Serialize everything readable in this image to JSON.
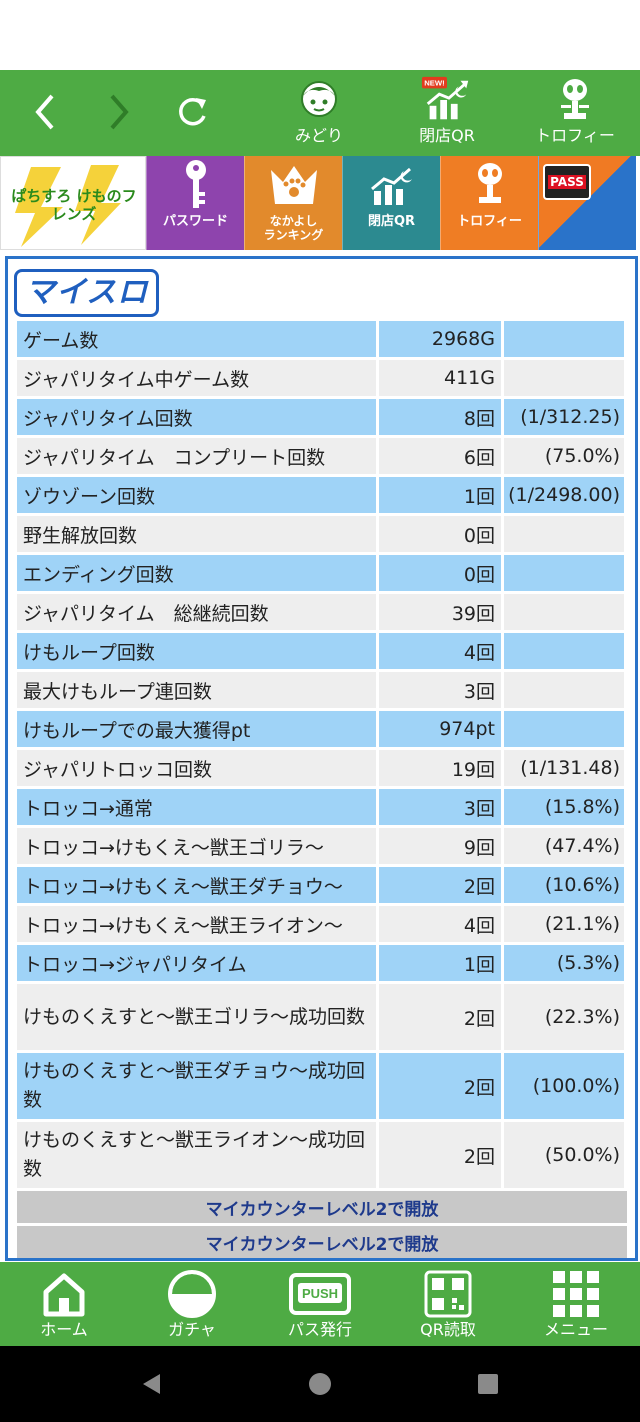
{
  "topnav": {
    "back_icon": "chevron-left-icon",
    "forward_icon": "chevron-right-icon",
    "reload_icon": "reload-icon",
    "items": [
      {
        "label": "みどり",
        "icon": "character-icon"
      },
      {
        "label": "閉店QR",
        "icon": "chart-moon-icon",
        "badge": "NEW!"
      },
      {
        "label": "トロフィー",
        "icon": "trophy-icon"
      }
    ]
  },
  "banner": {
    "logo_text": "ぱちすろ けものフレンズ",
    "tiles": [
      {
        "label": "パスワード",
        "icon": "key-icon"
      },
      {
        "label": "なかよし\nランキング",
        "icon": "paw-crown-icon"
      },
      {
        "label": "閉店QR",
        "icon": "chart-moon-icon"
      },
      {
        "label": "トロフィー",
        "icon": "trophy-icon"
      }
    ],
    "pass_badge": "PASS"
  },
  "myslo": {
    "logo": "マイスロ",
    "rows": [
      {
        "label": "ゲーム数",
        "value": "2968G",
        "extra": ""
      },
      {
        "label": "ジャパリタイム中ゲーム数",
        "value": "411G",
        "extra": ""
      },
      {
        "label": "ジャパリタイム回数",
        "value": "8回",
        "extra": "(1/312.25)"
      },
      {
        "label": "ジャパリタイム　コンプリート回数",
        "value": "6回",
        "extra": "(75.0%)"
      },
      {
        "label": "ゾウゾーン回数",
        "value": "1回",
        "extra": "(1/2498.00)"
      },
      {
        "label": "野生解放回数",
        "value": "0回",
        "extra": ""
      },
      {
        "label": "エンディング回数",
        "value": "0回",
        "extra": ""
      },
      {
        "label": "ジャパリタイム　総継続回数",
        "value": "39回",
        "extra": ""
      },
      {
        "label": "けもループ回数",
        "value": "4回",
        "extra": ""
      },
      {
        "label": "最大けもループ連回数",
        "value": "3回",
        "extra": ""
      },
      {
        "label": "けもループでの最大獲得pt",
        "value": "974pt",
        "extra": ""
      },
      {
        "label": "ジャパリトロッコ回数",
        "value": "19回",
        "extra": "(1/131.48)"
      },
      {
        "label": "トロッコ→通常",
        "value": "3回",
        "extra": "(15.8%)"
      },
      {
        "label": "トロッコ→けもくえ〜獣王ゴリラ〜",
        "value": "9回",
        "extra": "(47.4%)"
      },
      {
        "label": "トロッコ→けもくえ〜獣王ダチョウ〜",
        "value": "2回",
        "extra": "(10.6%)"
      },
      {
        "label": "トロッコ→けもくえ〜獣王ライオン〜",
        "value": "4回",
        "extra": "(21.1%)"
      },
      {
        "label": "トロッコ→ジャパリタイム",
        "value": "1回",
        "extra": "(5.3%)"
      },
      {
        "label": "けものくえすと〜獣王ゴリラ〜成功回数",
        "value": "2回",
        "extra": "(22.3%)"
      },
      {
        "label": "けものくえすと〜獣王ダチョウ〜成功回数",
        "value": "2回",
        "extra": "(100.0%)"
      },
      {
        "label": "けものくえすと〜獣王ライオン〜成功回数",
        "value": "2回",
        "extra": "(50.0%)"
      }
    ],
    "locked": [
      "マイカウンターレベル2で開放",
      "マイカウンターレベル2で開放"
    ]
  },
  "bottombar": {
    "items": [
      {
        "label": "ホーム",
        "icon": "home-icon"
      },
      {
        "label": "ガチャ",
        "icon": "gacha-ball-icon"
      },
      {
        "label": "パス発行",
        "icon": "push-pass-icon"
      },
      {
        "label": "QR読取",
        "icon": "qr-code-icon"
      },
      {
        "label": "メニュー",
        "icon": "grid-menu-icon"
      }
    ]
  },
  "colors": {
    "green": "#4eab44",
    "blue_row": "#9fd3f7",
    "gray_row": "#eeeeee",
    "frame": "#2a73c9"
  }
}
